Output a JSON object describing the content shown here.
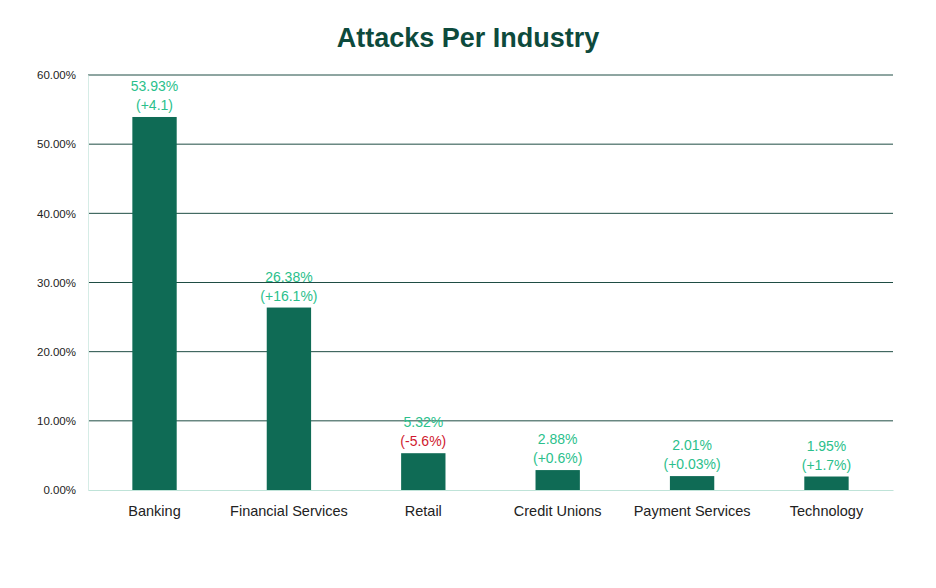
{
  "chart_data": {
    "type": "bar",
    "title": "Attacks Per Industry",
    "categories": [
      "Banking",
      "Financial Services",
      "Retail",
      "Credit Unions",
      "Payment Services",
      "Technology"
    ],
    "values": [
      53.93,
      26.38,
      5.32,
      2.88,
      2.01,
      1.95
    ],
    "value_labels": [
      "53.93%",
      "26.38%",
      "5.32%",
      "2.88%",
      "2.01%",
      "1.95%"
    ],
    "changes": [
      4.1,
      16.1,
      -5.6,
      0.6,
      0.03,
      1.7
    ],
    "change_labels": [
      "(+4.1)",
      "(+16.1%)",
      "(-5.6%)",
      "(+0.6%)",
      "(+0.03%)",
      "(+1.7%)"
    ],
    "color": "#0f6b55",
    "ylim": [
      0,
      60
    ],
    "yticks": [
      {
        "value": 0,
        "label": "0.00%"
      },
      {
        "value": 10,
        "label": "10.00%"
      },
      {
        "value": 20,
        "label": "20.00%"
      },
      {
        "value": 30,
        "label": "30.00%"
      },
      {
        "value": 40,
        "label": "40.00%"
      },
      {
        "value": 50,
        "label": "50.00%"
      },
      {
        "value": 60,
        "label": "60.00%"
      }
    ],
    "grid": true,
    "data_labels": true
  }
}
